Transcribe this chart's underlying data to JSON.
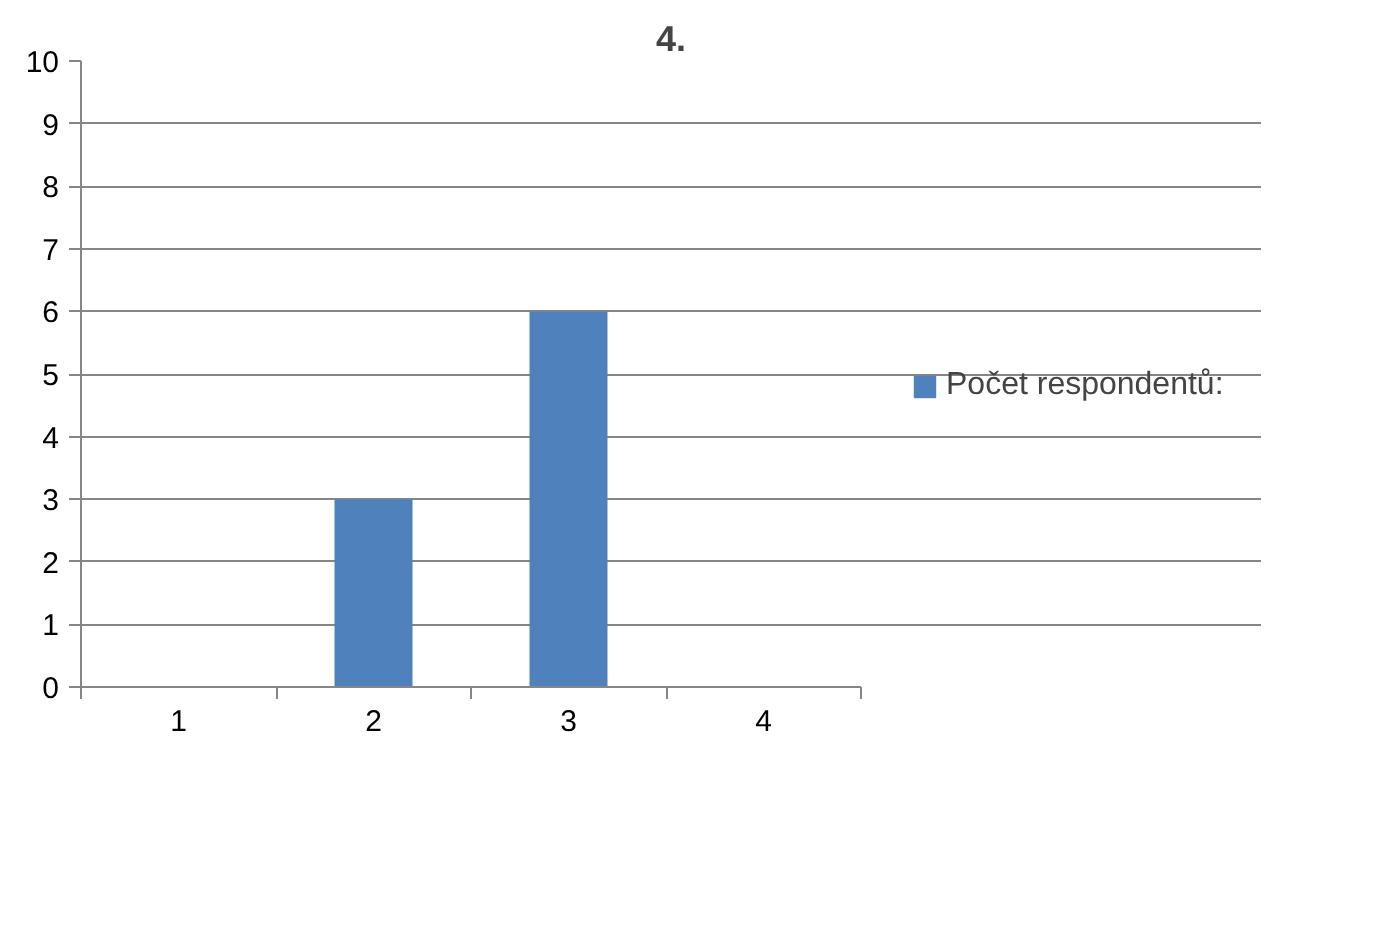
{
  "chart_data": {
    "type": "bar",
    "title": "4.",
    "categories": [
      "1",
      "2",
      "3",
      "4"
    ],
    "series": [
      {
        "name": "Počet respondentů:",
        "color": "#4f81bd",
        "values": [
          0,
          3,
          6,
          0
        ]
      }
    ],
    "ylim": [
      0,
      10
    ],
    "yticks": [
      0,
      1,
      2,
      3,
      4,
      5,
      6,
      7,
      8,
      9,
      10
    ],
    "grid": "y",
    "legend": "right"
  }
}
